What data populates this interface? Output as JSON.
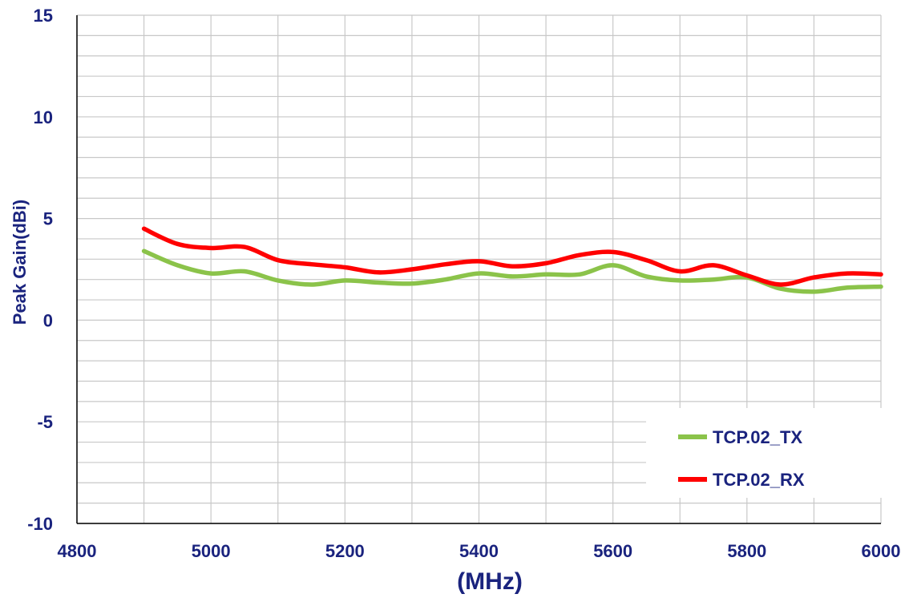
{
  "chart_data": {
    "type": "line",
    "title": "",
    "xlabel": "(MHz)",
    "ylabel": "Peak Gain(dBi)",
    "xlim": [
      4800,
      6000
    ],
    "ylim": [
      -10,
      15
    ],
    "x_ticks": [
      4800,
      5000,
      5200,
      5400,
      5600,
      5800,
      6000
    ],
    "y_ticks": [
      15,
      10,
      5,
      0,
      -5,
      -10
    ],
    "x_minor_step": 100,
    "y_minor_step": 1,
    "grid": true,
    "legend_position": "bottom-right",
    "axis_text_color": "#1a237e",
    "series": [
      {
        "name": "TCP.02_TX",
        "color": "#8bc34a",
        "x": [
          4900,
          4950,
          5000,
          5050,
          5100,
          5150,
          5200,
          5250,
          5300,
          5350,
          5400,
          5450,
          5500,
          5550,
          5600,
          5650,
          5700,
          5750,
          5800,
          5850,
          5900,
          5950,
          6000
        ],
        "y": [
          3.4,
          2.7,
          2.3,
          2.4,
          1.95,
          1.75,
          1.95,
          1.85,
          1.8,
          2.0,
          2.3,
          2.15,
          2.25,
          2.25,
          2.7,
          2.15,
          1.95,
          2.0,
          2.1,
          1.55,
          1.4,
          1.6,
          1.65
        ]
      },
      {
        "name": "TCP.02_RX",
        "color": "#ff0000",
        "x": [
          4900,
          4950,
          5000,
          5050,
          5100,
          5150,
          5200,
          5250,
          5300,
          5350,
          5400,
          5450,
          5500,
          5550,
          5600,
          5650,
          5700,
          5750,
          5800,
          5850,
          5900,
          5950,
          6000
        ],
        "y": [
          4.5,
          3.75,
          3.55,
          3.6,
          2.95,
          2.75,
          2.6,
          2.35,
          2.5,
          2.75,
          2.9,
          2.65,
          2.8,
          3.2,
          3.35,
          2.95,
          2.4,
          2.7,
          2.2,
          1.75,
          2.1,
          2.3,
          2.25
        ]
      }
    ]
  }
}
